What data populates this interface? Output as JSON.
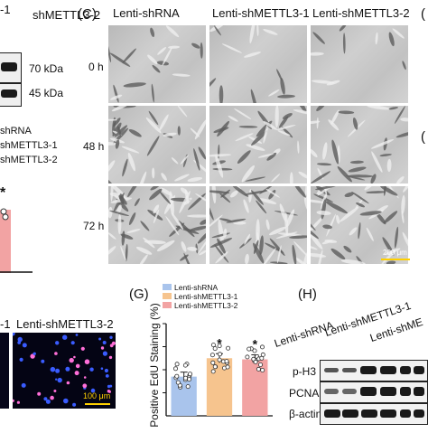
{
  "panelA_fragments": {
    "header_partial_1": "-1",
    "header_partial_2": "shMETTL3-2",
    "kda_70": "70 kDa",
    "kda_45": "45 kDa",
    "legend_1": "shRNA",
    "legend_2": "shMETTL3-1",
    "legend_3": "shMETTL3-2",
    "star": "*"
  },
  "panelC": {
    "label": "(C)",
    "columns": [
      "Lenti-shRNA",
      "Lenti-shMETTL3-1",
      "Lenti-shMETTL3-2"
    ],
    "rows": [
      "0 h",
      "48 h",
      "72 h"
    ],
    "scale_bar": "200 μm"
  },
  "right_edge_labels": [
    "(",
    "("
  ],
  "panelF_fragment": {
    "header_partial": "-1",
    "header": "Lenti-shMETTL3-2",
    "scale_bar": "100 μm"
  },
  "panelG": {
    "label": "(G)",
    "star": "*",
    "chart_data": {
      "type": "bar",
      "categories": [
        "Lenti-shRNA",
        "Lenti-shMETTL3-1",
        "Lenti-shMETTL3-2"
      ],
      "values": [
        17,
        25,
        24.5
      ],
      "ylabel": "Positive EdU Staining (%)",
      "ylim": [
        0,
        40
      ],
      "yticks": [
        10,
        20,
        30,
        40
      ],
      "legend": [
        "Lenti-shRNA",
        "Lenti-shMETTL3-1",
        "Lenti-shMETTL3-2"
      ],
      "legend_position": "top-left",
      "colors": [
        "#a9c4ec",
        "#f6c48e",
        "#f2a3a3"
      ],
      "significance": [
        "",
        "*",
        "*"
      ]
    }
  },
  "panelH": {
    "label": "(H)",
    "lanes": [
      "Lenti-shRNA",
      "Lenti-shMETTL3-1",
      "Lenti-shME"
    ],
    "proteins": [
      "p-H3",
      "PCNA",
      "β-actin"
    ]
  }
}
